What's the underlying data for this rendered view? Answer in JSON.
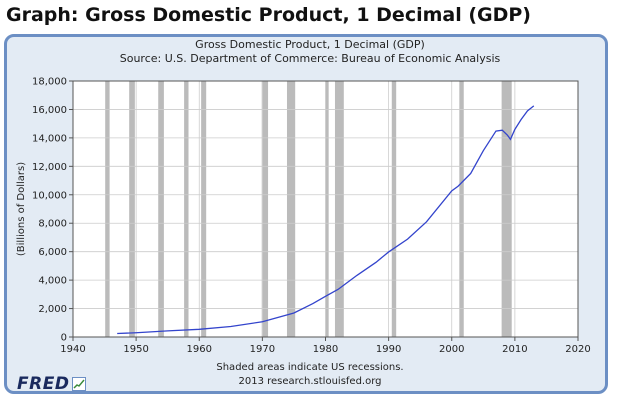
{
  "page": {
    "title": "Graph: Gross Domestic Product, 1 Decimal (GDP)"
  },
  "chart_data": {
    "type": "line",
    "title": "Gross Domestic Product, 1 Decimal (GDP)",
    "subtitle": "Source: U.S. Department of Commerce: Bureau of Economic Analysis",
    "xlabel": "",
    "ylabel": "(Billions of Dollars)",
    "xlim": [
      1940,
      2020
    ],
    "ylim": [
      0,
      18000
    ],
    "x_ticks": [
      "1940",
      "1950",
      "1960",
      "1970",
      "1980",
      "1990",
      "2000",
      "2010",
      "2020"
    ],
    "y_ticks": [
      "0",
      "2,000",
      "4,000",
      "6,000",
      "8,000",
      "10,000",
      "12,000",
      "14,000",
      "16,000",
      "18,000"
    ],
    "grid": true,
    "series_color": "#3344cc",
    "recession_color": "#bbbbbb",
    "recessions": [
      [
        1945.1,
        1945.8
      ],
      [
        1948.9,
        1949.8
      ],
      [
        1953.5,
        1954.4
      ],
      [
        1957.6,
        1958.3
      ],
      [
        1960.3,
        1961.1
      ],
      [
        1969.9,
        1970.9
      ],
      [
        1973.9,
        1975.2
      ],
      [
        1980.0,
        1980.5
      ],
      [
        1981.5,
        1982.9
      ],
      [
        1990.5,
        1991.2
      ],
      [
        2001.2,
        2001.9
      ],
      [
        2007.9,
        2009.5
      ]
    ],
    "series": [
      {
        "x": [
          1947,
          1950,
          1955,
          1960,
          1965,
          1970,
          1975,
          1978,
          1980,
          1982,
          1985,
          1988,
          1990,
          1993,
          1996,
          2000,
          2001,
          2003,
          2005,
          2007,
          2008,
          2008.8,
          2009.3,
          2010,
          2011,
          2012,
          2013
        ],
        "values": [
          244,
          300,
          430,
          540,
          740,
          1070,
          1690,
          2350,
          2860,
          3350,
          4340,
          5250,
          5980,
          6880,
          8100,
          10280,
          10600,
          11500,
          13100,
          14480,
          14540,
          14200,
          13900,
          14600,
          15300,
          15900,
          16250
        ]
      }
    ],
    "footnote": [
      "Shaded areas indicate US recessions.",
      "2013 research.stlouisfed.org"
    ]
  },
  "logo": {
    "text": "FRED"
  }
}
